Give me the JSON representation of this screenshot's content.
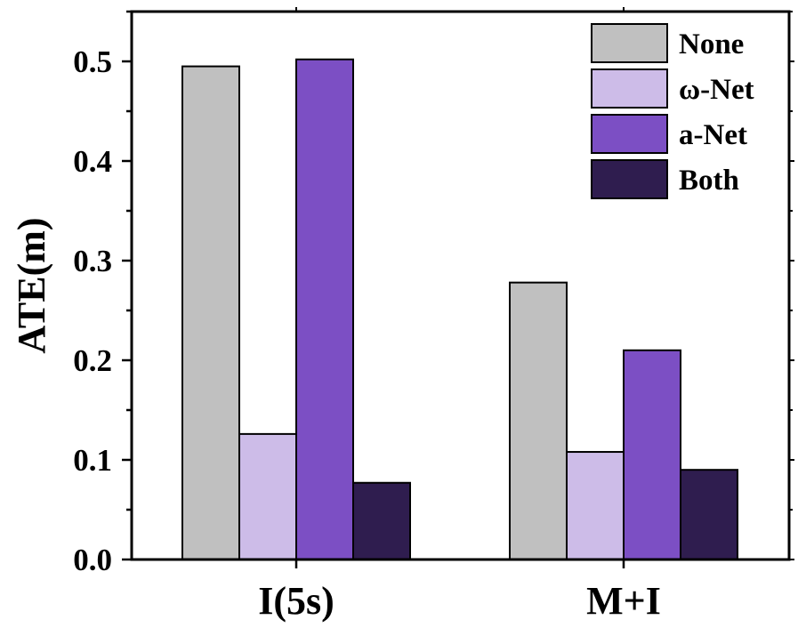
{
  "chart_data": {
    "type": "bar",
    "ylabel": "ATE(m)",
    "ylim": [
      0,
      0.55
    ],
    "yticks": [
      "0.0",
      "0.1",
      "0.2",
      "0.3",
      "0.4",
      "0.5"
    ],
    "categories": [
      "I(5s)",
      "M+I"
    ],
    "series": [
      {
        "name": "None",
        "color": "#c0c0c0",
        "values": [
          0.495,
          0.278
        ]
      },
      {
        "name": "ω-Net",
        "color": "#cdbce8",
        "values": [
          0.126,
          0.108
        ]
      },
      {
        "name": "a-Net",
        "color": "#7c4fc4",
        "values": [
          0.502,
          0.21
        ]
      },
      {
        "name": "Both",
        "color": "#2f1d4f",
        "values": [
          0.077,
          0.09
        ]
      }
    ],
    "legend_position": "top-right",
    "grid": false
  }
}
